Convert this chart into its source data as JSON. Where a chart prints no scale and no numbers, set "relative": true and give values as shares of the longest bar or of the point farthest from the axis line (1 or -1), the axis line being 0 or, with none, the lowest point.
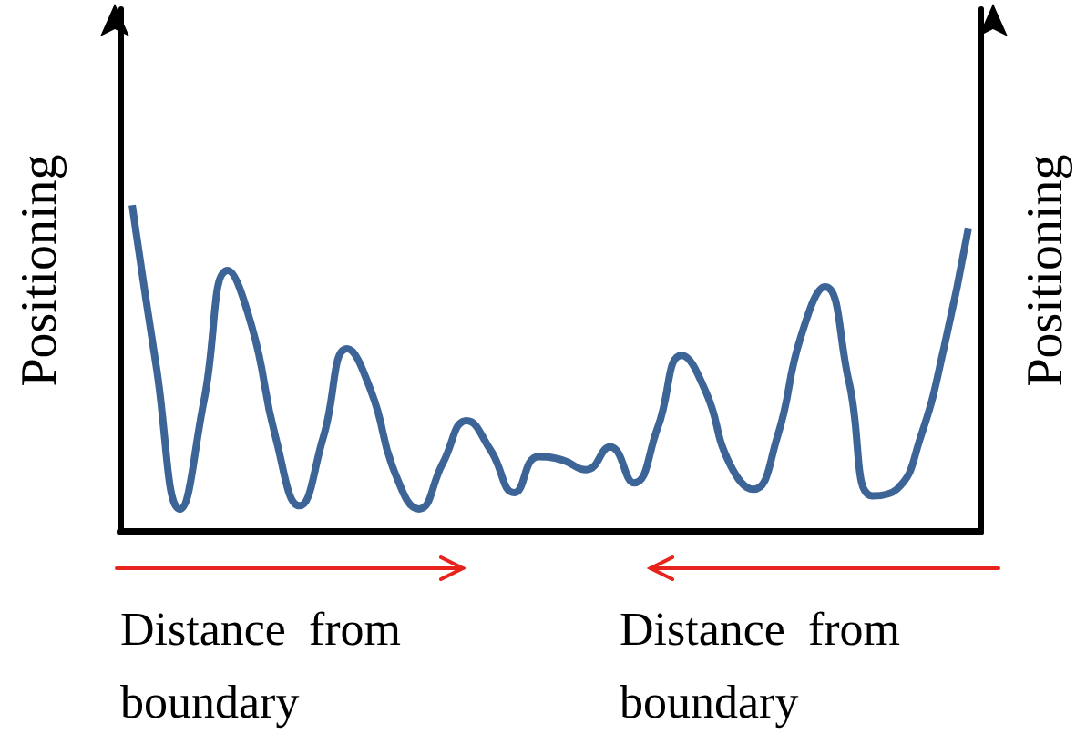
{
  "chart_data": {
    "type": "line",
    "relative": true,
    "ylabel": "Positioning",
    "y2label": "Positioning",
    "marker": "none",
    "color": "#3d6496",
    "categories": [
      null,
      null,
      null,
      null,
      null,
      null,
      null,
      null,
      null,
      null,
      null,
      null,
      null,
      null,
      null,
      null,
      null,
      null,
      null,
      null,
      null,
      null,
      null,
      null,
      null,
      null,
      null,
      null,
      null,
      null,
      null,
      null,
      null,
      null,
      null,
      null
    ],
    "values": [
      1.0,
      0.51,
      0.07,
      0.4,
      0.8,
      0.63,
      0.29,
      0.08,
      0.29,
      0.56,
      0.43,
      0.18,
      0.07,
      0.21,
      0.34,
      0.25,
      0.12,
      0.23,
      0.22,
      0.19,
      0.26,
      0.15,
      0.32,
      0.54,
      0.43,
      0.21,
      0.13,
      0.29,
      0.6,
      0.75,
      0.46,
      0.11,
      0.13,
      0.29,
      0.57,
      0.93
    ],
    "annotations": [
      "Distance from boundary",
      "Distance from boundary"
    ]
  }
}
